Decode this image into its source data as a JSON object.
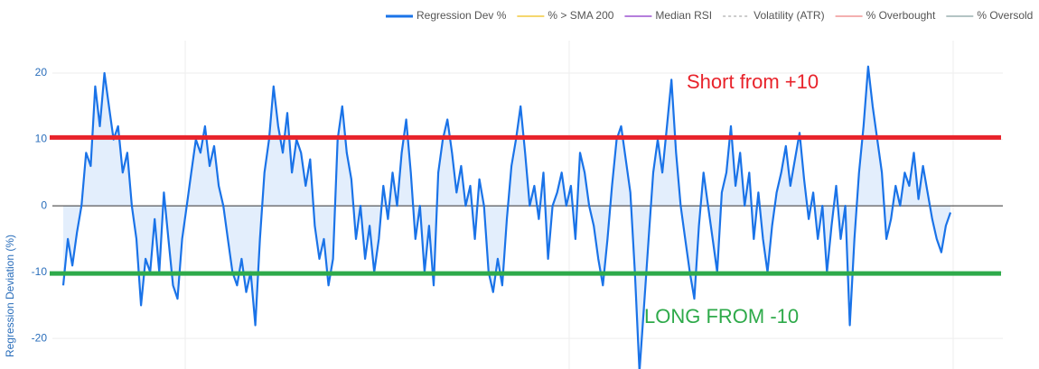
{
  "chart_data": {
    "type": "line",
    "y_title": "Regression Deviation (%)",
    "ylim": [
      -24.6,
      24.9
    ],
    "yticks": [
      -20,
      -10,
      0,
      10,
      20
    ],
    "grid": true,
    "zeroline": true,
    "fill_to_zero": true,
    "legend": [
      {
        "name": "Regression Dev %",
        "color": "#1a73e8",
        "dash": false
      },
      {
        "name": "% > SMA 200",
        "color": "#f5d76e",
        "dash": false
      },
      {
        "name": "Median RSI",
        "color": "#b57edc",
        "dash": false
      },
      {
        "name": "Volatility (ATR)",
        "color": "#cccccc",
        "dash": true
      },
      {
        "name": "% Overbought",
        "color": "#f4b0b0",
        "dash": false
      },
      {
        "name": "% Oversold",
        "color": "#b4c4c4",
        "dash": false
      }
    ],
    "series": [
      {
        "name": "Regression Dev %",
        "color": "#1a73e8",
        "values": [
          -12,
          -5,
          -9,
          -4,
          0,
          8,
          6,
          18,
          12,
          20,
          15,
          10,
          12,
          5,
          8,
          0,
          -5,
          -15,
          -8,
          -10,
          -2,
          -10,
          2,
          -5,
          -12,
          -14,
          -5,
          0,
          5,
          10,
          8,
          12,
          6,
          9,
          3,
          0,
          -5,
          -10,
          -12,
          -8,
          -13,
          -10,
          -18,
          -5,
          5,
          10,
          18,
          12,
          8,
          14,
          5,
          10,
          8,
          3,
          7,
          -3,
          -8,
          -5,
          -12,
          -8,
          10,
          15,
          8,
          4,
          -5,
          0,
          -8,
          -3,
          -10,
          -5,
          3,
          -2,
          5,
          0,
          8,
          13,
          5,
          -5,
          0,
          -10,
          -3,
          -12,
          5,
          10,
          13,
          8,
          2,
          6,
          0,
          3,
          -5,
          4,
          0,
          -10,
          -13,
          -8,
          -12,
          -2,
          6,
          10,
          15,
          8,
          0,
          3,
          -2,
          5,
          -8,
          0,
          2,
          5,
          0,
          3,
          -5,
          8,
          5,
          0,
          -3,
          -8,
          -12,
          -5,
          3,
          10,
          12,
          7,
          2,
          -10,
          -25,
          -15,
          -5,
          5,
          10,
          5,
          12,
          19,
          8,
          0,
          -5,
          -10,
          -14,
          -3,
          5,
          0,
          -5,
          -10,
          2,
          5,
          12,
          3,
          8,
          0,
          5,
          -5,
          2,
          -5,
          -10,
          -3,
          2,
          5,
          9,
          3,
          7,
          11,
          4,
          -2,
          2,
          -5,
          0,
          -10,
          -3,
          3,
          -5,
          0,
          -18,
          -5,
          5,
          12,
          21,
          15,
          10,
          5,
          -5,
          -2,
          3,
          0,
          5,
          3,
          8,
          1,
          6,
          2,
          -2,
          -5,
          -7,
          -3,
          -1
        ]
      }
    ],
    "hlines": [
      {
        "value": 10.3,
        "color": "#e8232b"
      },
      {
        "value": -10.2,
        "color": "#2eaa4a"
      }
    ],
    "annotations": [
      {
        "text": "Short from +10",
        "color": "#e8232b"
      },
      {
        "text": "LONG FROM -10",
        "color": "#2eaa4a"
      }
    ]
  }
}
